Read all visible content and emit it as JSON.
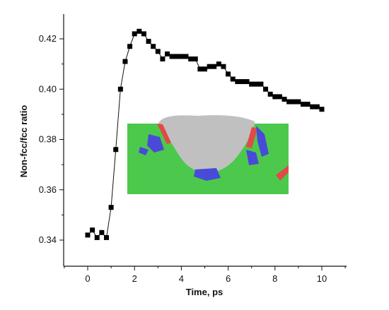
{
  "chart_data": {
    "type": "scatter",
    "xlabel": "Time, ps",
    "ylabel": "Non-fcc/fcc ratio",
    "xlim": [
      -1,
      11
    ],
    "ylim": [
      0.33,
      0.43
    ],
    "xticks": [
      0,
      2,
      4,
      6,
      8,
      10
    ],
    "yticks": [
      0.34,
      0.36,
      0.38,
      0.4,
      0.42
    ],
    "xtick_labels": [
      "0",
      "2",
      "4",
      "6",
      "8",
      "10"
    ],
    "ytick_labels": [
      "0.34",
      "0.36",
      "0.38",
      "0.40",
      "0.42"
    ],
    "grid": false,
    "marker": "square",
    "connected_by_line": true,
    "series": [
      {
        "color": "#000000",
        "x": [
          0.0,
          0.2,
          0.4,
          0.6,
          0.8,
          1.0,
          1.2,
          1.4,
          1.6,
          1.8,
          2.0,
          2.2,
          2.4,
          2.6,
          2.8,
          3.0,
          3.2,
          3.4,
          3.6,
          3.8,
          4.0,
          4.2,
          4.4,
          4.6,
          4.8,
          5.0,
          5.2,
          5.4,
          5.6,
          5.8,
          6.0,
          6.2,
          6.4,
          6.6,
          6.8,
          7.0,
          7.2,
          7.4,
          7.6,
          7.8,
          8.0,
          8.2,
          8.4,
          8.6,
          8.8,
          9.0,
          9.2,
          9.4,
          9.6,
          9.8,
          10.0
        ],
        "y": [
          0.342,
          0.344,
          0.341,
          0.343,
          0.341,
          0.353,
          0.376,
          0.4,
          0.411,
          0.417,
          0.422,
          0.423,
          0.422,
          0.419,
          0.417,
          0.415,
          0.412,
          0.414,
          0.413,
          0.413,
          0.413,
          0.413,
          0.412,
          0.412,
          0.408,
          0.408,
          0.409,
          0.409,
          0.41,
          0.409,
          0.406,
          0.404,
          0.403,
          0.403,
          0.403,
          0.402,
          0.402,
          0.402,
          0.4,
          0.398,
          0.397,
          0.397,
          0.396,
          0.395,
          0.395,
          0.395,
          0.394,
          0.394,
          0.393,
          0.393,
          0.392
        ]
      }
    ]
  },
  "inset": {
    "description_colors": {
      "background": "#4cc94c",
      "crater": "#c0c0c0",
      "red_defects": "#e04a4a",
      "blue_defects": "#4a4ad8"
    }
  }
}
